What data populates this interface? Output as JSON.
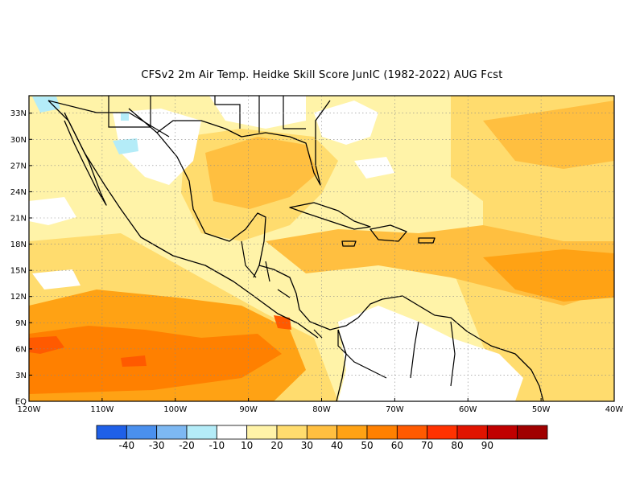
{
  "title": "CFSv2  2m Air Temp. Heidke Skill Score JunIC (1982-2022) AUG Fcst",
  "map": {
    "lon_range": [
      -120,
      -40
    ],
    "lat_range": [
      0,
      35
    ],
    "x_ticks": [
      {
        "value": -120,
        "label": "120W"
      },
      {
        "value": -110,
        "label": "110W"
      },
      {
        "value": -100,
        "label": "100W"
      },
      {
        "value": -90,
        "label": "90W"
      },
      {
        "value": -80,
        "label": "80W"
      },
      {
        "value": -70,
        "label": "70W"
      },
      {
        "value": -60,
        "label": "60W"
      },
      {
        "value": -50,
        "label": "50W"
      },
      {
        "value": -40,
        "label": "40W"
      }
    ],
    "y_ticks": [
      {
        "value": 0,
        "label": "EQ"
      },
      {
        "value": 3,
        "label": "3N"
      },
      {
        "value": 6,
        "label": "6N"
      },
      {
        "value": 9,
        "label": "9N"
      },
      {
        "value": 12,
        "label": "12N"
      },
      {
        "value": 15,
        "label": "15N"
      },
      {
        "value": 18,
        "label": "18N"
      },
      {
        "value": 21,
        "label": "21N"
      },
      {
        "value": 24,
        "label": "24N"
      },
      {
        "value": 27,
        "label": "27N"
      },
      {
        "value": 30,
        "label": "30N"
      },
      {
        "value": 33,
        "label": "33N"
      }
    ],
    "grid": true
  },
  "colorbar": {
    "colors": [
      "#1f60e8",
      "#4a90ee",
      "#7db8f2",
      "#b4ecf8",
      "#ffffff",
      "#fff3a8",
      "#ffdc6e",
      "#ffbf40",
      "#ffa214",
      "#ff8000",
      "#ff5a00",
      "#ff3200",
      "#e11400",
      "#c00000",
      "#a00000"
    ],
    "labels": [
      "-40",
      "-30",
      "-20",
      "-10",
      "10",
      "20",
      "30",
      "40",
      "50",
      "60",
      "70",
      "80",
      "90"
    ]
  }
}
